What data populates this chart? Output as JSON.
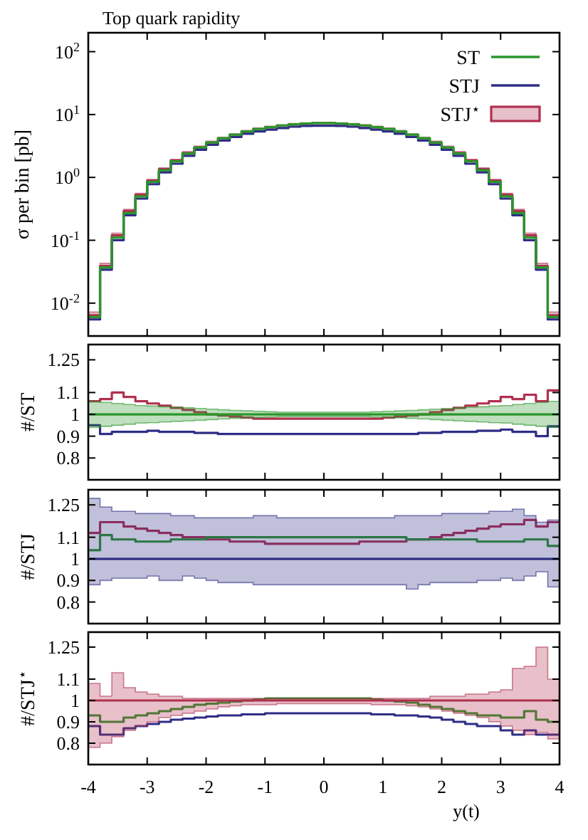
{
  "chart_data": [
    {
      "type": "step",
      "title": "Top quark rapidity",
      "ylabel": "σ per bin [pb]",
      "log": "y",
      "legend": "top right",
      "tick_labels": "y",
      "grid": false,
      "x": [
        -4,
        -3.8,
        -3.6,
        -3.4,
        -3.2,
        -3,
        -2.8,
        -2.6,
        -2.4,
        -2.2,
        -2,
        -1.8,
        -1.6,
        -1.4,
        -1.2,
        -1,
        -0.8,
        -0.6,
        -0.4,
        -0.2,
        0,
        0.2,
        0.4,
        0.6,
        0.8,
        1,
        1.2,
        1.4,
        1.6,
        1.8,
        2,
        2.2,
        2.4,
        2.6,
        2.8,
        3,
        3.2,
        3.4,
        3.6,
        3.8,
        4
      ],
      "xlim": [
        -4,
        4
      ],
      "xticks": [
        -4,
        -3,
        -2,
        -1,
        0,
        1,
        2,
        3,
        4
      ],
      "ylim": [
        0.003,
        200
      ],
      "yticks": [
        {
          "value": 0.01,
          "label": "10$^{-2}$"
        },
        {
          "value": 0.1,
          "label": "10$^{-1}$"
        },
        {
          "value": 1,
          "label": "10$^{0}$"
        },
        {
          "value": 10,
          "label": "10$^{1}$"
        },
        {
          "value": 100,
          "label": "10$^{2}$"
        }
      ],
      "series": [
        {
          "name": "ST",
          "color": "#2a962a",
          "values": [
            0.006,
            0.037,
            0.11,
            0.27,
            0.5,
            0.85,
            1.3,
            1.8,
            2.4,
            3.0,
            3.6,
            4.2,
            4.8,
            5.4,
            5.9,
            6.3,
            6.7,
            7.0,
            7.2,
            7.3,
            7.3,
            7.2,
            7.0,
            6.7,
            6.3,
            5.9,
            5.4,
            4.8,
            4.2,
            3.6,
            3.0,
            2.4,
            1.8,
            1.3,
            0.85,
            0.5,
            0.27,
            0.11,
            0.037,
            0.006,
            0.006
          ]
        },
        {
          "name": "STJ",
          "color": "#2e2e86",
          "values": [
            0.0055,
            0.034,
            0.1,
            0.25,
            0.46,
            0.78,
            1.2,
            1.65,
            2.2,
            2.75,
            3.3,
            3.85,
            4.4,
            4.95,
            5.4,
            5.75,
            6.1,
            6.4,
            6.6,
            6.65,
            6.65,
            6.6,
            6.4,
            6.1,
            5.75,
            5.4,
            4.95,
            4.4,
            3.85,
            3.3,
            2.75,
            2.2,
            1.65,
            1.2,
            0.78,
            0.46,
            0.25,
            0.1,
            0.034,
            0.0055,
            0.0055
          ]
        },
        {
          "name": "STJ$^{⋆}$",
          "color": "#b0304e",
          "values": [
            0.0064,
            0.039,
            0.12,
            0.29,
            0.53,
            0.89,
            1.35,
            1.85,
            2.45,
            3.0,
            null,
            null,
            null,
            null,
            null,
            null,
            null,
            null,
            null,
            null,
            null,
            null,
            null,
            null,
            null,
            null,
            null,
            null,
            null,
            null,
            null,
            2.45,
            1.85,
            1.35,
            0.89,
            0.53,
            0.29,
            0.12,
            0.039,
            0.0064,
            0.0064
          ],
          "lower": [
            0.0058,
            0.036,
            0.11,
            0.27,
            0.5,
            0.85,
            1.28,
            1.76,
            2.33,
            2.85,
            3.42,
            3.94,
            4.47,
            5.04,
            5.51,
            5.89,
            6.22,
            6.51,
            6.7,
            6.79,
            6.79,
            6.7,
            6.51,
            6.22,
            5.89,
            5.51,
            5.04,
            4.47,
            3.94,
            3.42,
            2.85,
            2.33,
            1.76,
            1.28,
            0.85,
            0.5,
            0.27,
            0.11,
            0.036,
            0.0058,
            0.0058
          ],
          "upper": [
            0.0072,
            0.043,
            0.13,
            0.31,
            0.56,
            0.93,
            1.42,
            1.94,
            2.57,
            3.15,
            3.78,
            4.36,
            4.94,
            5.57,
            6.09,
            6.51,
            6.88,
            7.19,
            7.4,
            7.51,
            7.51,
            7.4,
            7.19,
            6.88,
            6.51,
            6.09,
            5.57,
            4.94,
            4.36,
            3.78,
            3.15,
            2.57,
            1.94,
            1.42,
            0.93,
            0.56,
            0.31,
            0.13,
            0.043,
            0.0072,
            0.0072
          ]
        }
      ]
    },
    {
      "type": "step",
      "ylabel": "#/ST",
      "tick_labels": "y",
      "grid": false,
      "x": [
        -4,
        -3.8,
        -3.6,
        -3.4,
        -3.2,
        -3,
        -2.8,
        -2.6,
        -2.4,
        -2.2,
        -2,
        -1.8,
        -1.6,
        -1.4,
        -1.2,
        -1,
        -0.8,
        -0.6,
        -0.4,
        -0.2,
        0,
        0.2,
        0.4,
        0.6,
        0.8,
        1,
        1.2,
        1.4,
        1.6,
        1.8,
        2,
        2.2,
        2.4,
        2.6,
        2.8,
        3,
        3.2,
        3.4,
        3.6,
        3.8,
        4
      ],
      "xlim": [
        -4,
        4
      ],
      "xticks": [
        -4,
        -3,
        -2,
        -1,
        0,
        1,
        2,
        3,
        4
      ],
      "ylim": [
        0.7,
        1.32
      ],
      "yticks": [
        0.8,
        0.9,
        1,
        1.1,
        1.25
      ],
      "series": [
        {
          "color": "#2a962a",
          "values": [
            1,
            1,
            1,
            1,
            1,
            1,
            1,
            1,
            1,
            1,
            1,
            1,
            1,
            1,
            1,
            1,
            1,
            1,
            1,
            1,
            1,
            1,
            1,
            1,
            1,
            1,
            1,
            1,
            1,
            1,
            1,
            1,
            1,
            1,
            1,
            1,
            1,
            1,
            1,
            1,
            1
          ],
          "lower": [
            0.94,
            0.945,
            0.95,
            0.955,
            0.96,
            0.962,
            0.965,
            0.968,
            0.97,
            0.973,
            0.976,
            0.979,
            0.982,
            0.984,
            0.986,
            0.988,
            0.99,
            0.99,
            0.99,
            0.99,
            0.99,
            0.99,
            0.99,
            0.99,
            0.988,
            0.986,
            0.984,
            0.982,
            0.979,
            0.976,
            0.973,
            0.97,
            0.968,
            0.965,
            0.962,
            0.96,
            0.955,
            0.95,
            0.945,
            0.94,
            0.94
          ],
          "upper": [
            1.06,
            1.055,
            1.05,
            1.045,
            1.04,
            1.038,
            1.035,
            1.032,
            1.03,
            1.027,
            1.024,
            1.021,
            1.018,
            1.016,
            1.014,
            1.012,
            1.01,
            1.01,
            1.01,
            1.01,
            1.01,
            1.01,
            1.01,
            1.01,
            1.012,
            1.014,
            1.016,
            1.018,
            1.021,
            1.024,
            1.027,
            1.03,
            1.032,
            1.035,
            1.038,
            1.04,
            1.045,
            1.05,
            1.055,
            1.06,
            1.06
          ]
        },
        {
          "color": "#2e2e86",
          "values": [
            0.95,
            0.91,
            0.92,
            0.92,
            0.92,
            0.925,
            0.92,
            0.92,
            0.92,
            0.915,
            0.915,
            0.91,
            0.91,
            0.91,
            0.91,
            0.91,
            0.91,
            0.91,
            0.91,
            0.91,
            0.91,
            0.91,
            0.91,
            0.91,
            0.91,
            0.91,
            0.91,
            0.91,
            0.915,
            0.915,
            0.92,
            0.92,
            0.92,
            0.925,
            0.925,
            0.93,
            0.92,
            0.92,
            0.9,
            0.945,
            0.945
          ]
        },
        {
          "color": "#b0304e",
          "values": [
            1.06,
            1.07,
            1.1,
            1.08,
            1.06,
            1.05,
            1.04,
            1.03,
            1.02,
            1.01,
            1.0,
            0.995,
            0.99,
            0.985,
            0.98,
            0.98,
            0.98,
            0.98,
            0.98,
            0.98,
            0.98,
            0.98,
            0.98,
            0.98,
            0.98,
            0.985,
            0.99,
            0.995,
            1.0,
            1.01,
            1.02,
            1.03,
            1.04,
            1.05,
            1.06,
            1.08,
            1.07,
            1.09,
            1.06,
            1.11,
            1.11
          ]
        }
      ]
    },
    {
      "type": "step",
      "ylabel": "#/STJ",
      "tick_labels": "y",
      "grid": false,
      "x": [
        -4,
        -3.8,
        -3.6,
        -3.4,
        -3.2,
        -3,
        -2.8,
        -2.6,
        -2.4,
        -2.2,
        -2,
        -1.8,
        -1.6,
        -1.4,
        -1.2,
        -1,
        -0.8,
        -0.6,
        -0.4,
        -0.2,
        0,
        0.2,
        0.4,
        0.6,
        0.8,
        1,
        1.2,
        1.4,
        1.6,
        1.8,
        2,
        2.2,
        2.4,
        2.6,
        2.8,
        3,
        3.2,
        3.4,
        3.6,
        3.8,
        4
      ],
      "xlim": [
        -4,
        4
      ],
      "xticks": [
        -4,
        -3,
        -2,
        -1,
        0,
        1,
        2,
        3,
        4
      ],
      "ylim": [
        0.7,
        1.32
      ],
      "yticks": [
        0.8,
        0.9,
        1,
        1.1,
        1.25
      ],
      "series": [
        {
          "color": "#2e2e86",
          "values": [
            1,
            1,
            1,
            1,
            1,
            1,
            1,
            1,
            1,
            1,
            1,
            1,
            1,
            1,
            1,
            1,
            1,
            1,
            1,
            1,
            1,
            1,
            1,
            1,
            1,
            1,
            1,
            1,
            1,
            1,
            1,
            1,
            1,
            1,
            1,
            1,
            1,
            1,
            1,
            1,
            1
          ],
          "lower": [
            0.88,
            0.9,
            0.91,
            0.91,
            0.91,
            0.92,
            0.9,
            0.9,
            0.92,
            0.91,
            0.9,
            0.89,
            0.89,
            0.89,
            0.88,
            0.88,
            0.88,
            0.88,
            0.88,
            0.88,
            0.88,
            0.88,
            0.88,
            0.88,
            0.88,
            0.88,
            0.88,
            0.86,
            0.88,
            0.89,
            0.89,
            0.89,
            0.89,
            0.9,
            0.9,
            0.91,
            0.9,
            0.92,
            0.94,
            0.87,
            0.87
          ],
          "upper": [
            1.28,
            1.24,
            1.22,
            1.22,
            1.21,
            1.21,
            1.21,
            1.2,
            1.2,
            1.19,
            1.19,
            1.19,
            1.19,
            1.19,
            1.2,
            1.2,
            1.19,
            1.19,
            1.19,
            1.19,
            1.19,
            1.19,
            1.19,
            1.19,
            1.19,
            1.19,
            1.2,
            1.2,
            1.2,
            1.2,
            1.21,
            1.21,
            1.21,
            1.21,
            1.22,
            1.22,
            1.23,
            1.2,
            1.17,
            1.18,
            1.18
          ]
        },
        {
          "color": "#2a962a",
          "values": [
            1.04,
            1.11,
            1.09,
            1.09,
            1.08,
            1.08,
            1.08,
            1.09,
            1.09,
            1.09,
            1.1,
            1.1,
            1.1,
            1.1,
            1.1,
            1.1,
            1.1,
            1.1,
            1.1,
            1.1,
            1.1,
            1.1,
            1.1,
            1.1,
            1.1,
            1.1,
            1.1,
            1.09,
            1.09,
            1.09,
            1.09,
            1.09,
            1.09,
            1.08,
            1.08,
            1.08,
            1.08,
            1.09,
            1.09,
            1.06,
            1.06
          ]
        },
        {
          "color": "#b0304e",
          "values": [
            1.12,
            1.17,
            1.17,
            1.15,
            1.14,
            1.13,
            1.12,
            1.11,
            1.1,
            1.1,
            1.09,
            1.09,
            1.08,
            1.08,
            1.08,
            1.07,
            1.07,
            1.07,
            1.07,
            1.07,
            1.07,
            1.07,
            1.07,
            1.08,
            1.08,
            1.08,
            1.08,
            1.09,
            1.09,
            1.1,
            1.11,
            1.12,
            1.13,
            1.14,
            1.15,
            1.16,
            1.16,
            1.18,
            1.15,
            1.17,
            1.17
          ]
        }
      ]
    },
    {
      "type": "step",
      "ylabel": "#/STJ$^{⋆}$",
      "xlabel": "y(t)",
      "grid": false,
      "x": [
        -4,
        -3.8,
        -3.6,
        -3.4,
        -3.2,
        -3,
        -2.8,
        -2.6,
        -2.4,
        -2.2,
        -2,
        -1.8,
        -1.6,
        -1.4,
        -1.2,
        -1,
        -0.8,
        -0.6,
        -0.4,
        -0.2,
        0,
        0.2,
        0.4,
        0.6,
        0.8,
        1,
        1.2,
        1.4,
        1.6,
        1.8,
        2,
        2.2,
        2.4,
        2.6,
        2.8,
        3,
        3.2,
        3.4,
        3.6,
        3.8,
        4
      ],
      "xlim": [
        -4,
        4
      ],
      "xticks": [
        -4,
        -3,
        -2,
        -1,
        0,
        1,
        2,
        3,
        4
      ],
      "ylim": [
        0.7,
        1.32
      ],
      "yticks": [
        0.8,
        0.9,
        1,
        1.1,
        1.25
      ],
      "series": [
        {
          "color": "#b0304e",
          "values": [
            1,
            1,
            1,
            1,
            1,
            1,
            1,
            1,
            1,
            1,
            1,
            1,
            1,
            1,
            1,
            1,
            1,
            1,
            1,
            1,
            1,
            1,
            1,
            1,
            1,
            1,
            1,
            1,
            1,
            1,
            1,
            1,
            1,
            1,
            1,
            1,
            1,
            1,
            1,
            1,
            1
          ],
          "lower": [
            0.78,
            0.8,
            0.83,
            0.86,
            0.88,
            0.9,
            0.92,
            0.93,
            0.94,
            0.95,
            0.96,
            0.97,
            0.975,
            0.98,
            0.98,
            0.98,
            0.985,
            0.985,
            0.985,
            0.985,
            0.985,
            0.985,
            0.985,
            0.985,
            0.98,
            0.98,
            0.98,
            0.975,
            0.97,
            0.96,
            0.95,
            0.94,
            0.93,
            0.92,
            0.9,
            0.88,
            0.86,
            0.84,
            0.85,
            0.82,
            0.82
          ],
          "upper": [
            1.08,
            1.02,
            1.13,
            1.06,
            1.04,
            1.03,
            1.02,
            1.02,
            1.01,
            1.01,
            1.01,
            1.01,
            1.01,
            1.01,
            1.01,
            1.01,
            1.01,
            1.01,
            1.01,
            1.01,
            1.01,
            1.01,
            1.01,
            1.01,
            1.01,
            1.01,
            1.01,
            1.01,
            1.01,
            1.02,
            1.02,
            1.02,
            1.03,
            1.03,
            1.04,
            1.05,
            1.15,
            1.16,
            1.25,
            1.1,
            1.1
          ]
        },
        {
          "color": "#2a962a",
          "values": [
            0.93,
            0.9,
            0.9,
            0.92,
            0.93,
            0.94,
            0.95,
            0.96,
            0.97,
            0.98,
            0.985,
            0.99,
            0.995,
            1.0,
            1.005,
            1.01,
            1.01,
            1.01,
            1.01,
            1.01,
            1.01,
            1.01,
            1.01,
            1.01,
            1.005,
            1.0,
            0.995,
            0.99,
            0.98,
            0.97,
            0.96,
            0.95,
            0.94,
            0.93,
            0.93,
            0.92,
            0.92,
            0.95,
            0.91,
            0.9,
            0.9
          ]
        },
        {
          "color": "#2e2e86",
          "values": [
            0.88,
            0.84,
            0.84,
            0.87,
            0.88,
            0.89,
            0.9,
            0.91,
            0.915,
            0.92,
            0.925,
            0.93,
            0.93,
            0.935,
            0.935,
            0.94,
            0.94,
            0.94,
            0.94,
            0.94,
            0.94,
            0.94,
            0.94,
            0.94,
            0.935,
            0.935,
            0.93,
            0.93,
            0.925,
            0.92,
            0.91,
            0.9,
            0.89,
            0.88,
            0.88,
            0.86,
            0.84,
            0.86,
            0.84,
            0.84,
            0.84
          ]
        }
      ]
    }
  ]
}
